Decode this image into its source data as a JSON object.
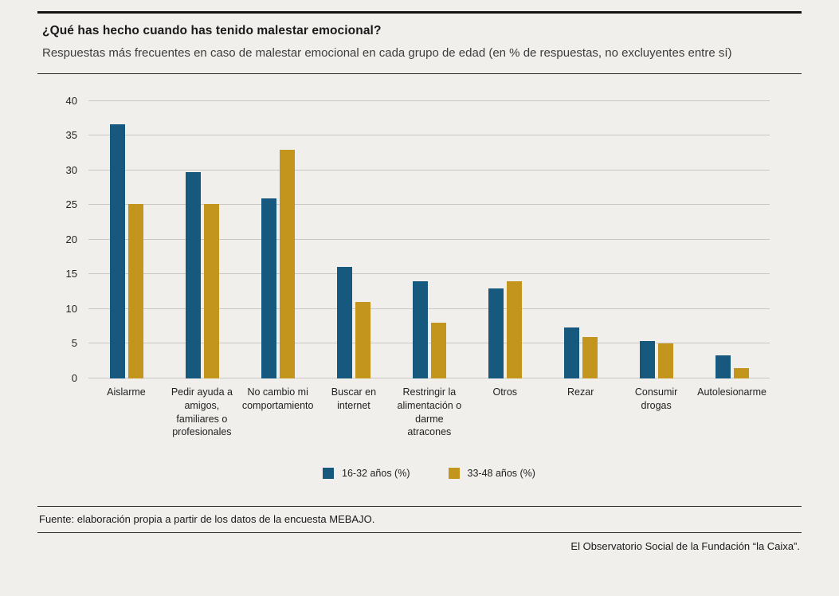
{
  "header": {
    "title": "¿Qué has hecho cuando has tenido malestar emocional?",
    "subtitle": "Respuestas más frecuentes en caso de malestar emocional en cada grupo de edad (en % de respuestas, no excluyentes entre sí)"
  },
  "chart_data": {
    "type": "bar",
    "title": "¿Qué has hecho cuando has tenido malestar emocional?",
    "categories": [
      "Aislarme",
      "Pedir ayuda a amigos, familiares o profesionales",
      "No cambio mi comportamiento",
      "Buscar en internet",
      "Restringir la alimentación o darme atracones",
      "Otros",
      "Rezar",
      "Consumir drogas",
      "Autolesionarme"
    ],
    "series": [
      {
        "name": "16-32 años (%)",
        "color": "#17597e",
        "values": [
          36.6,
          29.8,
          26.0,
          16.1,
          14.0,
          13.0,
          7.3,
          5.4,
          3.3
        ]
      },
      {
        "name": "33-48 años (%)",
        "color": "#c4951c",
        "values": [
          25.2,
          25.1,
          33.0,
          11.0,
          8.0,
          14.0,
          6.0,
          5.0,
          1.5
        ]
      }
    ],
    "xlabel": "",
    "ylabel": "",
    "ylim": [
      0,
      40
    ],
    "yticks": [
      0,
      5,
      10,
      15,
      20,
      25,
      30,
      35,
      40
    ],
    "grid": true,
    "legend_position": "bottom"
  },
  "footer": {
    "source": "Fuente: elaboración propia a partir de los datos de la encuesta MEBAJO.",
    "credit": "El Observatorio Social de la Fundación “la Caixa”."
  }
}
